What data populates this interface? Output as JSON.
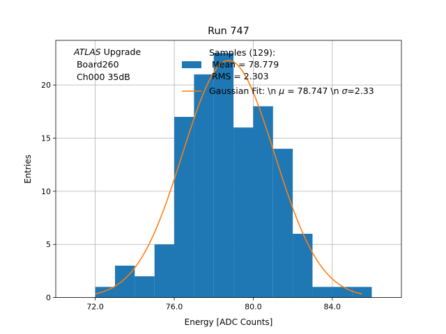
{
  "chart_data": {
    "type": "bar",
    "title": "Run 747",
    "xlabel": "Energy [ADC Counts]",
    "ylabel": "Entries",
    "xlim": [
      70.0,
      87.5
    ],
    "ylim": [
      0,
      24.2
    ],
    "grid": true,
    "x_ticks": [
      72.0,
      76.0,
      80.0,
      84.0
    ],
    "x_tick_labels": [
      "72.0",
      "76.0",
      "80.0",
      "84.0"
    ],
    "y_ticks": [
      0,
      5,
      10,
      15,
      20
    ],
    "y_tick_labels": [
      "0",
      "5",
      "10",
      "15",
      "20"
    ],
    "annotation": {
      "italic_part": "ATLAS",
      "line1_rest": " Upgrade",
      "line2": " Board260",
      "line3": " Ch000 35dB"
    },
    "bins": {
      "edges": [
        72,
        73,
        74,
        75,
        76,
        77,
        78,
        79,
        80,
        81,
        82,
        83,
        84,
        85,
        86
      ],
      "counts": [
        1,
        3,
        2,
        5,
        17,
        21,
        23,
        16,
        18,
        14,
        6,
        1,
        1,
        1
      ],
      "color": "#1f77b4"
    },
    "fit": {
      "mu": 78.747,
      "sigma": 2.33,
      "amplitude": 22.3,
      "x_range": [
        72.0,
        85.5
      ],
      "color": "#ff7f0e"
    },
    "legend": {
      "placement": "top-center",
      "hist_label_lines": [
        "Samples (129):",
        " Mean = 78.779",
        " RMS = 2.303"
      ],
      "fit_label_prefix": "Gaussian Fit: \\n ",
      "fit_label_mu_symbol": "μ",
      "fit_label_mid": " = 78.747 \\n ",
      "fit_label_sigma_symbol": "σ",
      "fit_label_end": "=2.33"
    }
  }
}
